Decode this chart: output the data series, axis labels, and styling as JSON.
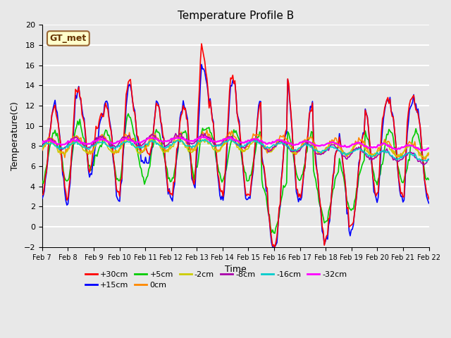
{
  "title": "Temperature Profile B",
  "xlabel": "Time",
  "ylabel": "Temperature(C)",
  "ylim": [
    -2,
    20
  ],
  "xlim": [
    0,
    15
  ],
  "background_color": "#e8e8e8",
  "plot_bg_color": "#e8e8e8",
  "grid_color": "white",
  "series_colors": {
    "+30cm": "#ff0000",
    "+15cm": "#0000ff",
    "+5cm": "#00cc00",
    "0cm": "#ff8800",
    "-2cm": "#cccc00",
    "-8cm": "#aa00aa",
    "-16cm": "#00cccc",
    "-32cm": "#ff00ff"
  },
  "legend_label": "GT_met",
  "xtick_labels": [
    "Feb 7",
    "Feb 8",
    "Feb 9",
    "Feb 10",
    "Feb 11",
    "Feb 12",
    "Feb 13",
    "Feb 14",
    "Feb 15",
    "Feb 16",
    "Feb 17",
    "Feb 18",
    "Feb 19",
    "Feb 20",
    "Feb 21",
    "Feb 22"
  ],
  "xtick_positions": [
    0,
    1,
    2,
    3,
    4,
    5,
    6,
    7,
    8,
    9,
    10,
    11,
    12,
    13,
    14,
    15
  ]
}
